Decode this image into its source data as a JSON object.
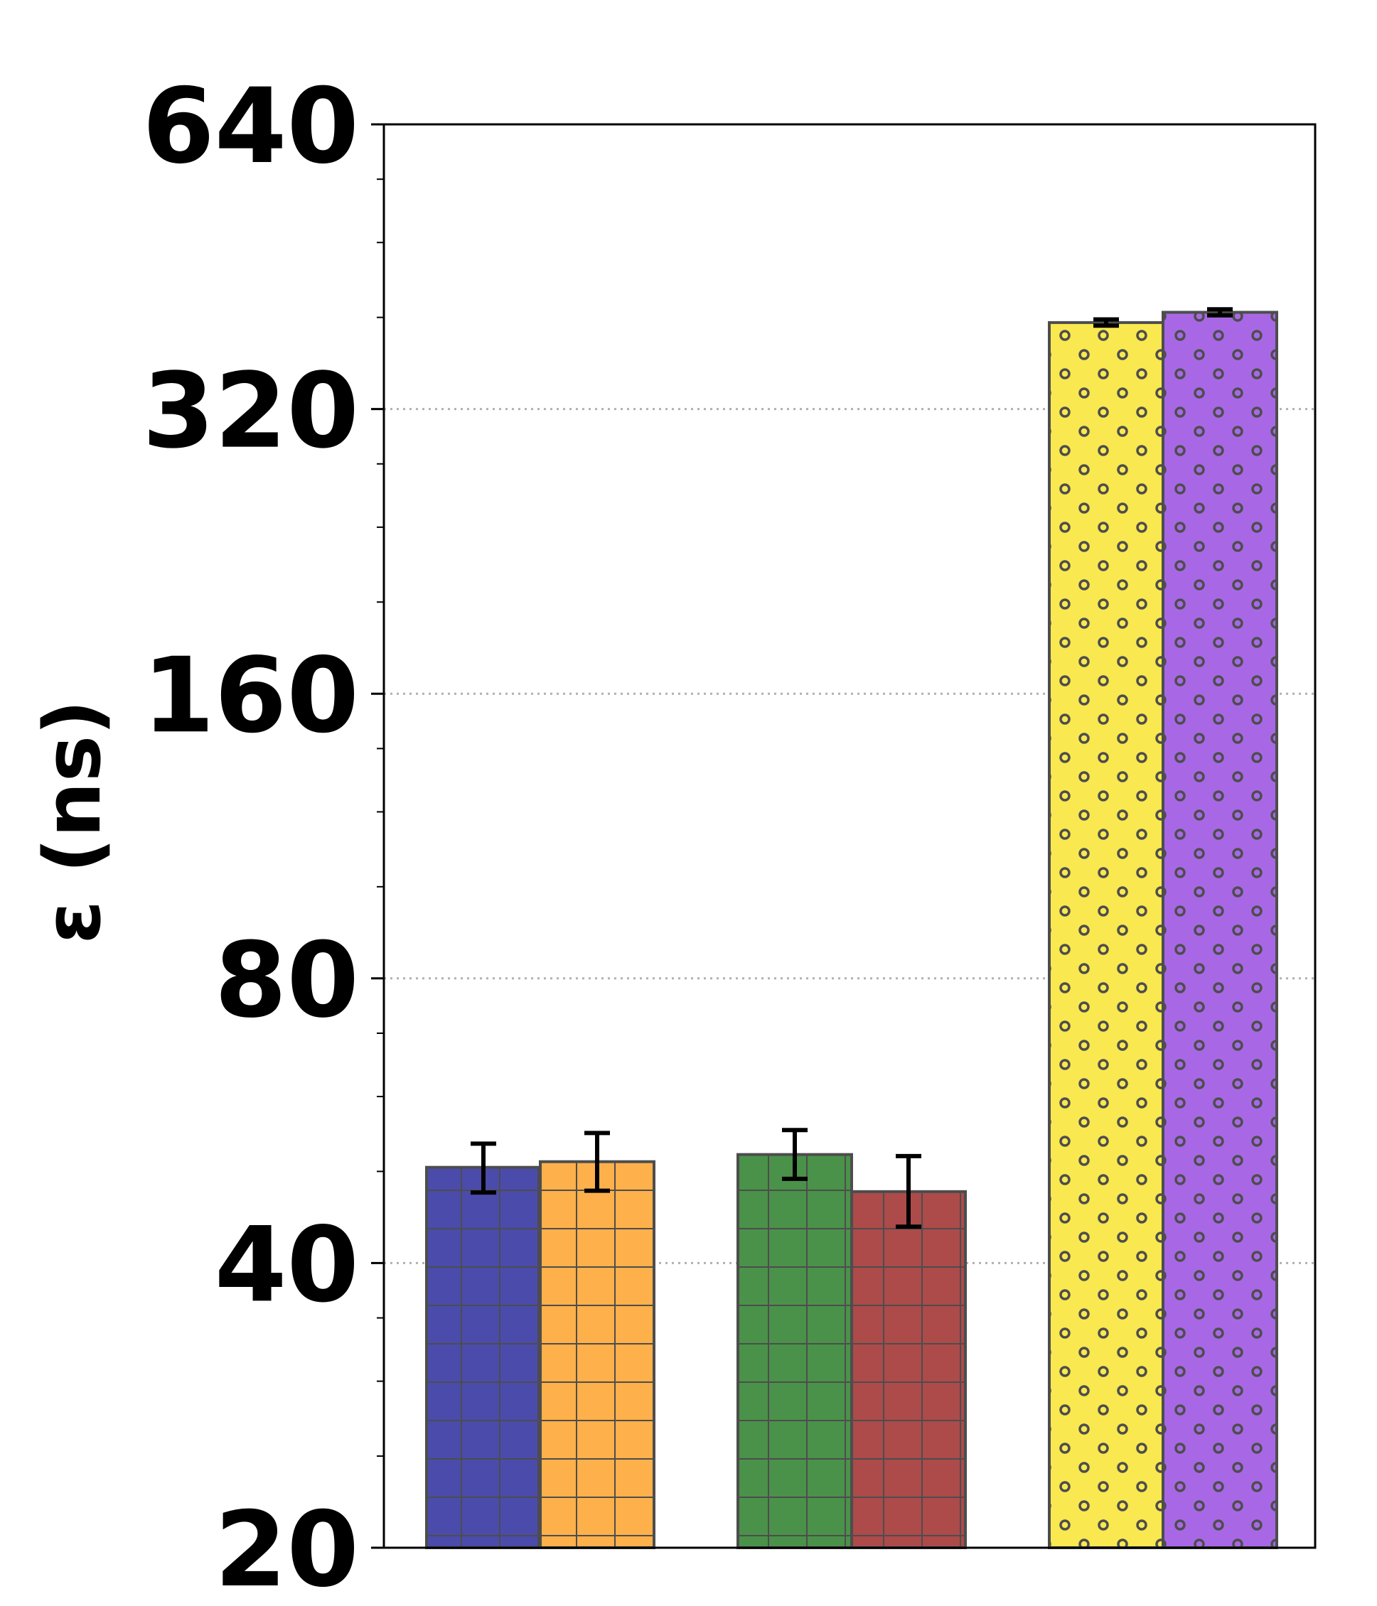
{
  "chart_data": {
    "type": "bar",
    "title": "",
    "xlabel": "",
    "ylabel": "ε (ns)",
    "yscale": "log2",
    "ylim": [
      20,
      640
    ],
    "yticks": [
      20,
      40,
      80,
      160,
      320,
      640
    ],
    "ytick_labels": [
      "20",
      "40",
      "80",
      "160",
      "320",
      "640"
    ],
    "grid": "horizontal dotted",
    "legend": "none",
    "bar_edge_color": "#4d4d4d",
    "groups": [
      {
        "bars": [
          {
            "value": 50.5,
            "err_low": 3.0,
            "err_high": 3.0,
            "color": "#4b4bab",
            "hatch": "grid"
          },
          {
            "value": 51.2,
            "err_low": 3.5,
            "err_high": 3.7,
            "color": "#feb04a",
            "hatch": "grid"
          }
        ]
      },
      {
        "bars": [
          {
            "value": 52.1,
            "err_low": 3.0,
            "err_high": 3.2,
            "color": "#4a9249",
            "hatch": "grid"
          },
          {
            "value": 47.6,
            "err_low": 3.9,
            "err_high": 4.3,
            "color": "#ad4a4a",
            "hatch": "grid"
          }
        ]
      },
      {
        "bars": [
          {
            "value": 395,
            "err_low": 3,
            "err_high": 3,
            "color": "#f9e84f",
            "hatch": "dots"
          },
          {
            "value": 405,
            "err_low": 3,
            "err_high": 3,
            "color": "#a868e6",
            "hatch": "dots"
          }
        ]
      }
    ]
  }
}
